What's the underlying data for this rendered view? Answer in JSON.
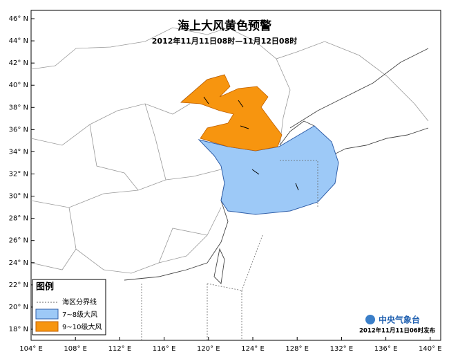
{
  "header": {
    "title": "海上大风黄色预警",
    "subtitle": "2012年11月11日08时—11月12日08时"
  },
  "axes": {
    "lat_labels": [
      "46° N",
      "44° N",
      "42° N",
      "40° N",
      "38° N",
      "36° N",
      "34° N",
      "32° N",
      "30° N",
      "28° N",
      "26° N",
      "24° N",
      "22° N",
      "20° N",
      "18° N"
    ],
    "lon_labels": [
      "104° E",
      "108° E",
      "112° E",
      "116° E",
      "120° E",
      "124° E",
      "128° E",
      "132° E",
      "136° E",
      "140° E"
    ]
  },
  "legend": {
    "title": "图例",
    "items": [
      "海区分界线",
      "7~8级大风",
      "9~10级大风"
    ]
  },
  "footer": {
    "agency": "中央气象台",
    "issued": "2012年11月11日06时发布"
  }
}
